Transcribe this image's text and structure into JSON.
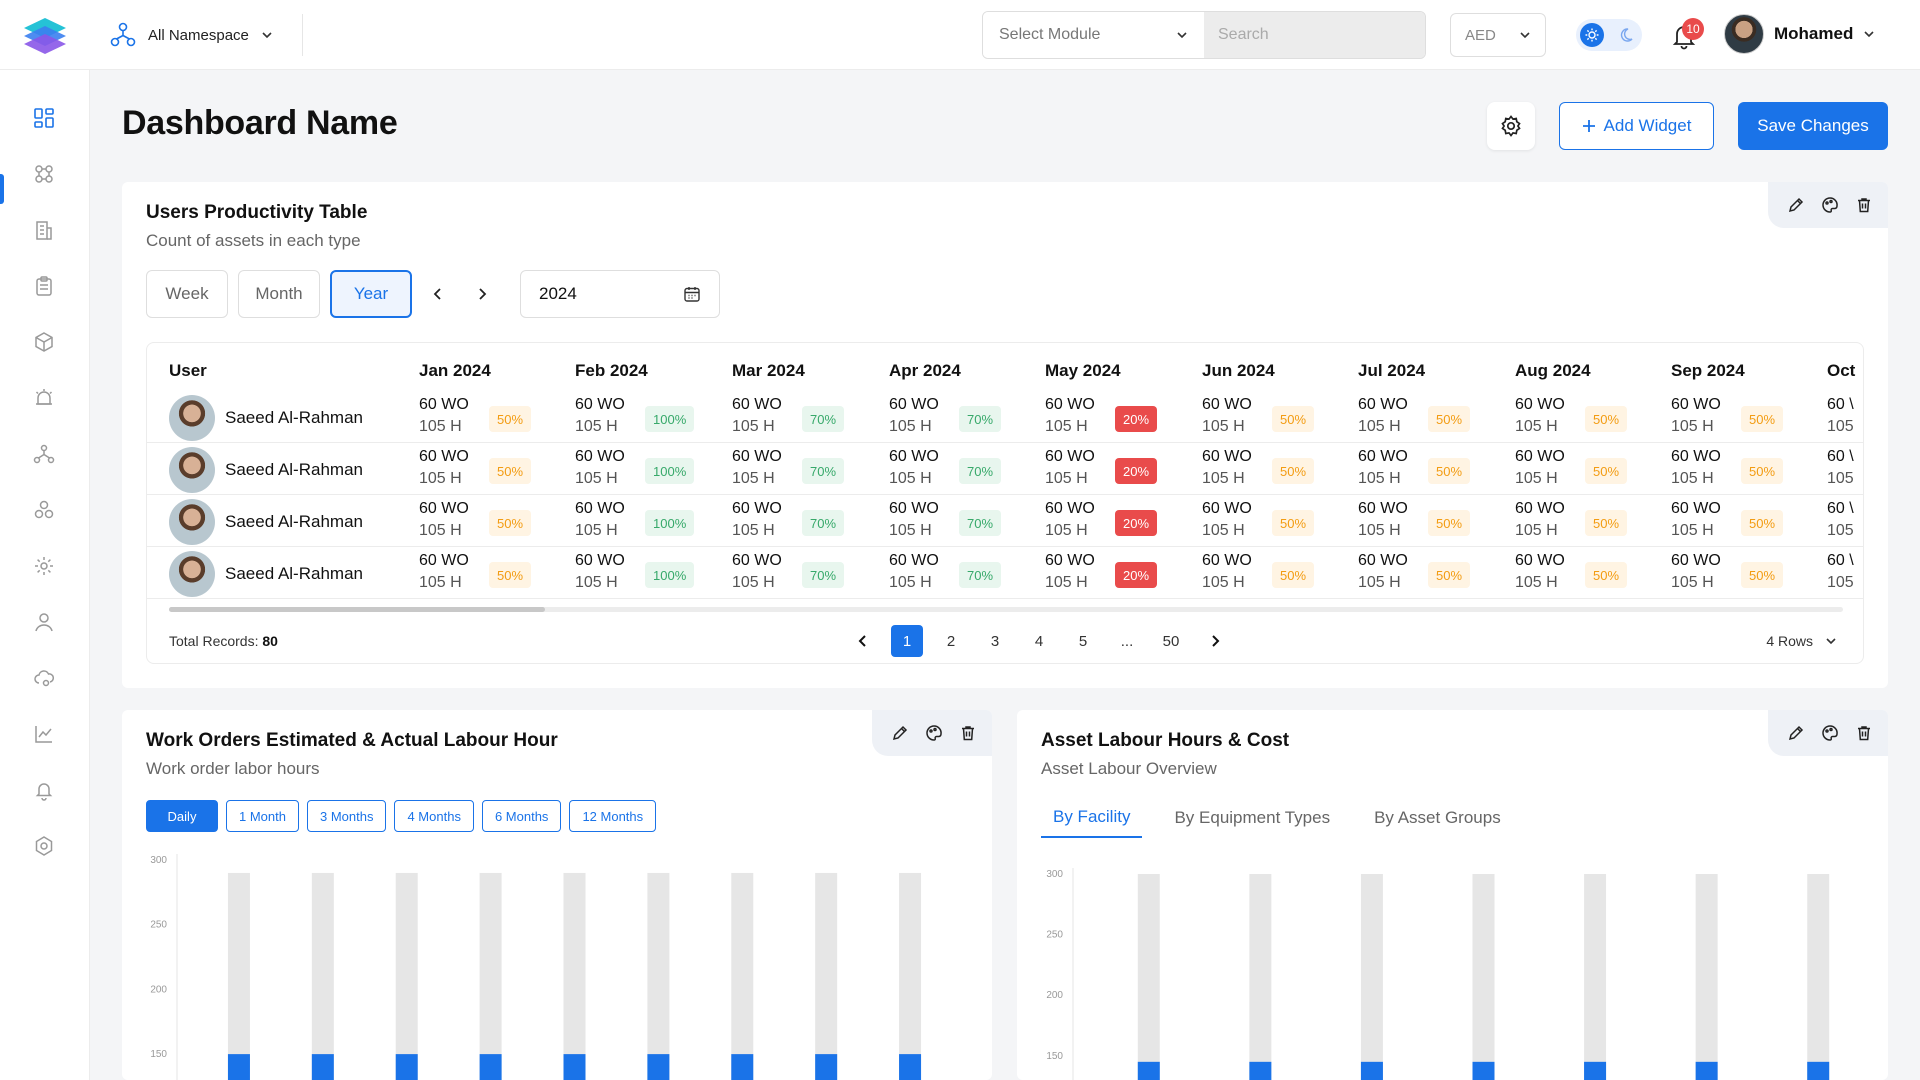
{
  "topbar": {
    "namespace_label": "All Namespace",
    "module_placeholder": "Select Module",
    "search_placeholder": "Search",
    "currency": "AED",
    "notifications_count": "10",
    "user_name": "Mohamed"
  },
  "sidebar": {
    "items": [
      "dashboard-icon",
      "apps-icon",
      "building-icon",
      "clipboard-icon",
      "box-icon",
      "alarm-icon",
      "network-icon",
      "cluster-icon",
      "gear-icon",
      "user-icon",
      "cloud-settings-icon",
      "line-chart-icon",
      "bell-icon",
      "cog-alt-icon"
    ],
    "active_index": 0
  },
  "header": {
    "title": "Dashboard Name",
    "add_widget_label": "Add Widget",
    "save_label": "Save Changes"
  },
  "productivity": {
    "title": "Users Productivity Table",
    "subtitle": "Count of assets in each type",
    "tabs": [
      "Week",
      "Month",
      "Year"
    ],
    "active_tab": "Year",
    "year_value": "2024",
    "user_header": "User",
    "months": [
      "Jan 2024",
      "Feb 2024",
      "Mar 2024",
      "Apr 2024",
      "May 2024",
      "Jun 2024",
      "Jul 2024",
      "Aug 2024",
      "Sep 2024",
      "Oct"
    ],
    "rows": [
      {
        "user": "Saeed Al-Rahman"
      },
      {
        "user": "Saeed Al-Rahman"
      },
      {
        "user": "Saeed Al-Rahman"
      },
      {
        "user": "Saeed Al-Rahman"
      }
    ],
    "cell": {
      "wo": "60 WO",
      "h": "105 H"
    },
    "month_badges": [
      {
        "pct": "50%",
        "tone": "orange"
      },
      {
        "pct": "100%",
        "tone": "green"
      },
      {
        "pct": "70%",
        "tone": "green"
      },
      {
        "pct": "70%",
        "tone": "green"
      },
      {
        "pct": "20%",
        "tone": "red"
      },
      {
        "pct": "50%",
        "tone": "orange"
      },
      {
        "pct": "50%",
        "tone": "orange"
      },
      {
        "pct": "50%",
        "tone": "orange"
      },
      {
        "pct": "50%",
        "tone": "orange"
      },
      {
        "pct": "",
        "tone": "orange"
      }
    ],
    "oct_wo": "60 \\",
    "oct_h": "105",
    "total_label": "Total Records:",
    "total_value": "80",
    "pages": [
      "1",
      "2",
      "3",
      "4",
      "5",
      "...",
      "50"
    ],
    "active_page": "1",
    "rows_label": "4 Rows"
  },
  "work_orders": {
    "title": "Work Orders Estimated & Actual Labour Hour",
    "subtitle": "Work order labor hours",
    "chips": [
      "Daily",
      "1 Month",
      "3 Months",
      "4 Months",
      "6 Months",
      "12 Months"
    ],
    "active_chip": "Daily"
  },
  "asset_labour": {
    "title": "Asset Labour Hours & Cost",
    "subtitle": "Asset Labour Overview",
    "tabs": [
      "By Facility",
      "By Equipment Types",
      "By Asset Groups"
    ],
    "active_tab": "By Facility"
  },
  "chart_data": [
    {
      "type": "bar",
      "title": "Work Orders Estimated & Actual Labour Hour",
      "yticks": [
        300,
        250,
        200,
        150
      ],
      "ylim": [
        130,
        300
      ],
      "categories": [
        "",
        "",
        "",
        "",
        "",
        "",
        "",
        "",
        ""
      ],
      "series": [
        {
          "values": [
            290,
            290,
            290,
            290,
            290,
            290,
            290,
            290,
            290
          ],
          "color": "#e6e6e6"
        },
        {
          "values": [
            150,
            150,
            150,
            150,
            150,
            150,
            150,
            150,
            150
          ],
          "color": "#1a73e8"
        }
      ]
    },
    {
      "type": "bar",
      "title": "Asset Labour Hours & Cost",
      "yticks": [
        300,
        250,
        200,
        150
      ],
      "ylim": [
        130,
        300
      ],
      "categories": [
        "",
        "",
        "",
        "",
        "",
        "",
        ""
      ],
      "series": [
        {
          "values": [
            300,
            300,
            300,
            300,
            300,
            300,
            300
          ],
          "color": "#e6e6e6"
        },
        {
          "values": [
            145,
            145,
            145,
            145,
            145,
            145,
            145
          ],
          "color": "#1a73e8"
        }
      ]
    }
  ]
}
